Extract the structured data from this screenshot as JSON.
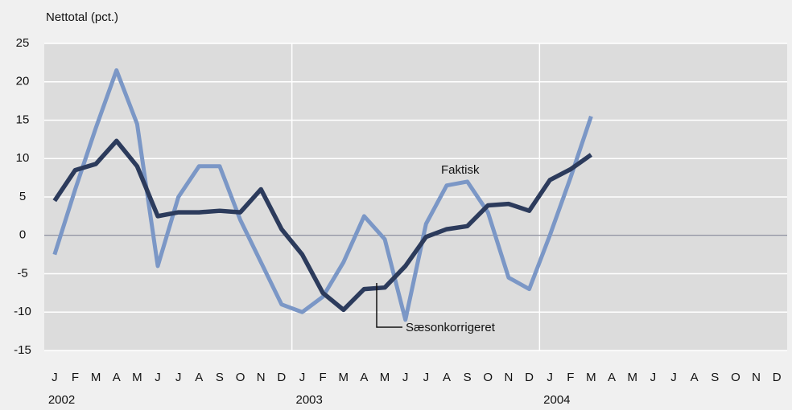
{
  "chart_data": {
    "type": "line",
    "y_axis_label": "Nettotal (pct.)",
    "categories": [
      "J",
      "F",
      "M",
      "A",
      "M",
      "J",
      "J",
      "A",
      "S",
      "O",
      "N",
      "D",
      "J",
      "F",
      "M",
      "A",
      "M",
      "J",
      "J",
      "A",
      "S",
      "O",
      "N",
      "D",
      "J",
      "F",
      "M",
      "A",
      "M",
      "J",
      "J",
      "A",
      "S",
      "O",
      "N",
      "D"
    ],
    "years": [
      "2002",
      "2003",
      "2004"
    ],
    "series": [
      {
        "name": "Faktisk",
        "color": "#7b97c6",
        "values": [
          -2.5,
          6,
          14,
          21.5,
          14.5,
          -4,
          5,
          9,
          9,
          2,
          -3.5,
          -9,
          -10,
          -8,
          -3.5,
          2.5,
          -0.5,
          -11,
          1.5,
          6.5,
          7,
          3,
          -5.5,
          -7,
          0,
          7.5,
          15.5,
          null,
          null,
          null,
          null,
          null,
          null,
          null,
          null,
          null
        ]
      },
      {
        "name": "Sæsonkorrigeret",
        "color": "#2c3b5c",
        "values": [
          4.5,
          8.5,
          9.3,
          12.3,
          9,
          2.5,
          3,
          3,
          3.2,
          3,
          6,
          0.8,
          -2.5,
          -7.5,
          -9.7,
          -7,
          -6.8,
          -4,
          -0.2,
          0.8,
          1.2,
          3.9,
          4.1,
          3.2,
          7.2,
          8.6,
          10.5,
          null,
          null,
          null,
          null,
          null,
          null,
          null,
          null,
          null
        ]
      }
    ],
    "ylim": [
      -15,
      25
    ],
    "yticks": [
      -15,
      -10,
      -5,
      0,
      5,
      10,
      15,
      20,
      25
    ],
    "grid": true
  }
}
